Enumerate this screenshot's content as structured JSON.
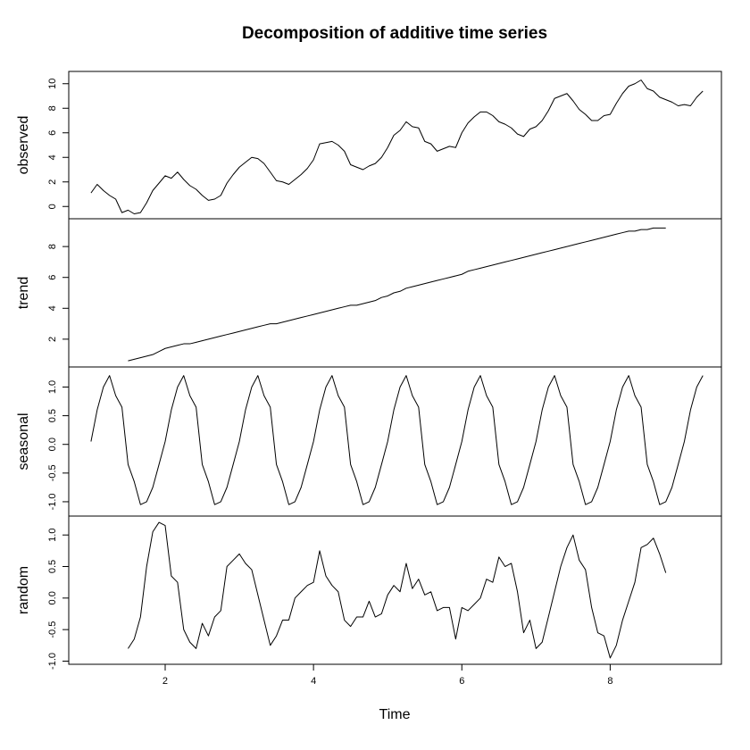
{
  "chart_data": {
    "type": "line",
    "title": "Decomposition of additive time series",
    "xlabel": "Time",
    "xlim": [
      0.7,
      9.5
    ],
    "x_ticks": [
      2,
      4,
      6,
      8
    ],
    "x_tick_labels": [
      "2",
      "4",
      "6",
      "8"
    ],
    "x": [
      1.0,
      1.083,
      1.167,
      1.25,
      1.333,
      1.417,
      1.5,
      1.583,
      1.667,
      1.75,
      1.833,
      1.917,
      2.0,
      2.083,
      2.167,
      2.25,
      2.333,
      2.417,
      2.5,
      2.583,
      2.667,
      2.75,
      2.833,
      2.917,
      3.0,
      3.083,
      3.167,
      3.25,
      3.333,
      3.417,
      3.5,
      3.583,
      3.667,
      3.75,
      3.833,
      3.917,
      4.0,
      4.083,
      4.167,
      4.25,
      4.333,
      4.417,
      4.5,
      4.583,
      4.667,
      4.75,
      4.833,
      4.917,
      5.0,
      5.083,
      5.167,
      5.25,
      5.333,
      5.417,
      5.5,
      5.583,
      5.667,
      5.75,
      5.833,
      5.917,
      6.0,
      6.083,
      6.167,
      6.25,
      6.333,
      6.417,
      6.5,
      6.583,
      6.667,
      6.75,
      6.833,
      6.917,
      7.0,
      7.083,
      7.167,
      7.25,
      7.333,
      7.417,
      7.5,
      7.583,
      7.667,
      7.75,
      7.833,
      7.917,
      8.0,
      8.083,
      8.167,
      8.25,
      8.333,
      8.417,
      8.5,
      8.583,
      8.667,
      8.75,
      8.833,
      8.917,
      9.0,
      9.083,
      9.167,
      9.25
    ],
    "panels": [
      {
        "name": "observed",
        "ylim": [
          -1.0,
          11.0
        ],
        "y_ticks": [
          0,
          2,
          4,
          6,
          8,
          10
        ],
        "y_tick_labels": [
          "0",
          "2",
          "4",
          "6",
          "8",
          "10"
        ],
        "values": [
          1.1,
          1.8,
          1.3,
          0.9,
          0.6,
          -0.5,
          -0.3,
          -0.6,
          -0.5,
          0.3,
          1.3,
          1.9,
          2.5,
          2.3,
          2.8,
          2.2,
          1.7,
          1.4,
          0.9,
          0.5,
          0.6,
          0.9,
          1.9,
          2.6,
          3.2,
          3.6,
          4.0,
          3.9,
          3.5,
          2.8,
          2.1,
          2.0,
          1.8,
          2.2,
          2.6,
          3.1,
          3.8,
          5.1,
          5.2,
          5.3,
          5.0,
          4.5,
          3.4,
          3.2,
          3.0,
          3.3,
          3.5,
          4.0,
          4.8,
          5.8,
          6.2,
          6.9,
          6.5,
          6.4,
          5.3,
          5.1,
          4.5,
          4.7,
          4.9,
          4.8,
          6.0,
          6.8,
          7.3,
          7.7,
          7.7,
          7.4,
          6.9,
          6.7,
          6.4,
          5.9,
          5.7,
          6.3,
          6.5,
          7.0,
          7.8,
          8.8,
          9.0,
          9.2,
          8.6,
          7.9,
          7.5,
          7.0,
          7.0,
          7.4,
          7.5,
          8.4,
          9.2,
          9.8,
          10.0,
          10.3,
          9.6,
          9.4,
          8.9,
          8.7,
          8.5,
          8.2,
          8.3,
          8.2,
          8.9,
          9.4
        ]
      },
      {
        "name": "trend",
        "ylim": [
          0.2,
          9.8
        ],
        "y_ticks": [
          2,
          4,
          6,
          8
        ],
        "y_tick_labels": [
          "2",
          "4",
          "6",
          "8"
        ],
        "values": [
          null,
          null,
          null,
          null,
          null,
          null,
          0.6,
          0.7,
          0.8,
          0.9,
          1.0,
          1.2,
          1.4,
          1.5,
          1.6,
          1.7,
          1.7,
          1.8,
          1.9,
          2.0,
          2.1,
          2.2,
          2.3,
          2.4,
          2.5,
          2.6,
          2.7,
          2.8,
          2.9,
          3.0,
          3.0,
          3.1,
          3.2,
          3.3,
          3.4,
          3.5,
          3.6,
          3.7,
          3.8,
          3.9,
          4.0,
          4.1,
          4.2,
          4.2,
          4.3,
          4.4,
          4.5,
          4.7,
          4.8,
          5.0,
          5.1,
          5.3,
          5.4,
          5.5,
          5.6,
          5.7,
          5.8,
          5.9,
          6.0,
          6.1,
          6.2,
          6.4,
          6.5,
          6.6,
          6.7,
          6.8,
          6.9,
          7.0,
          7.1,
          7.2,
          7.3,
          7.4,
          7.5,
          7.6,
          7.7,
          7.8,
          7.9,
          8.0,
          8.1,
          8.2,
          8.3,
          8.4,
          8.5,
          8.6,
          8.7,
          8.8,
          8.9,
          9.0,
          9.0,
          9.1,
          9.1,
          9.2,
          9.2,
          9.2,
          null,
          null,
          null,
          null,
          null,
          null
        ]
      },
      {
        "name": "seasonal",
        "ylim": [
          -1.25,
          1.35
        ],
        "y_ticks": [
          -1.0,
          -0.5,
          0.0,
          0.5,
          1.0
        ],
        "y_tick_labels": [
          "-1.0",
          "-0.5",
          "0.0",
          "0.5",
          "1.0"
        ],
        "values": [
          0.05,
          0.6,
          1.0,
          1.2,
          0.85,
          0.65,
          -0.35,
          -0.65,
          -1.05,
          -1.0,
          -0.75,
          -0.35,
          0.05,
          0.6,
          1.0,
          1.2,
          0.85,
          0.65,
          -0.35,
          -0.65,
          -1.05,
          -1.0,
          -0.75,
          -0.35,
          0.05,
          0.6,
          1.0,
          1.2,
          0.85,
          0.65,
          -0.35,
          -0.65,
          -1.05,
          -1.0,
          -0.75,
          -0.35,
          0.05,
          0.6,
          1.0,
          1.2,
          0.85,
          0.65,
          -0.35,
          -0.65,
          -1.05,
          -1.0,
          -0.75,
          -0.35,
          0.05,
          0.6,
          1.0,
          1.2,
          0.85,
          0.65,
          -0.35,
          -0.65,
          -1.05,
          -1.0,
          -0.75,
          -0.35,
          0.05,
          0.6,
          1.0,
          1.2,
          0.85,
          0.65,
          -0.35,
          -0.65,
          -1.05,
          -1.0,
          -0.75,
          -0.35,
          0.05,
          0.6,
          1.0,
          1.2,
          0.85,
          0.65,
          -0.35,
          -0.65,
          -1.05,
          -1.0,
          -0.75,
          -0.35,
          0.05,
          0.6,
          1.0,
          1.2,
          0.85,
          0.65,
          -0.35,
          -0.65,
          -1.05,
          -1.0,
          -0.75,
          -0.35,
          0.05,
          0.6,
          1.0,
          1.2
        ]
      },
      {
        "name": "random",
        "ylim": [
          -1.05,
          1.3
        ],
        "y_ticks": [
          -1.0,
          -0.5,
          0.0,
          0.5,
          1.0
        ],
        "y_tick_labels": [
          "-1.0",
          "-0.5",
          "0.0",
          "0.5",
          "1.0"
        ],
        "values": [
          null,
          null,
          null,
          null,
          null,
          null,
          -0.8,
          -0.65,
          -0.3,
          0.5,
          1.05,
          1.2,
          1.15,
          0.35,
          0.25,
          -0.5,
          -0.7,
          -0.8,
          -0.4,
          -0.6,
          -0.3,
          -0.2,
          0.5,
          0.6,
          0.7,
          0.55,
          0.45,
          0.05,
          -0.35,
          -0.75,
          -0.6,
          -0.35,
          -0.35,
          0.0,
          0.1,
          0.2,
          0.25,
          0.75,
          0.35,
          0.2,
          0.1,
          -0.35,
          -0.45,
          -0.3,
          -0.3,
          -0.05,
          -0.3,
          -0.25,
          0.05,
          0.2,
          0.1,
          0.55,
          0.15,
          0.3,
          0.05,
          0.1,
          -0.2,
          -0.15,
          -0.15,
          -0.65,
          -0.15,
          -0.2,
          -0.1,
          0.0,
          0.3,
          0.25,
          0.65,
          0.5,
          0.55,
          0.1,
          -0.55,
          -0.35,
          -0.8,
          -0.7,
          -0.3,
          0.1,
          0.5,
          0.8,
          1.0,
          0.6,
          0.45,
          -0.15,
          -0.55,
          -0.6,
          -0.95,
          -0.75,
          -0.35,
          -0.05,
          0.25,
          0.8,
          0.85,
          0.95,
          0.7,
          0.4,
          null,
          null,
          null,
          null,
          null,
          null
        ]
      }
    ]
  }
}
